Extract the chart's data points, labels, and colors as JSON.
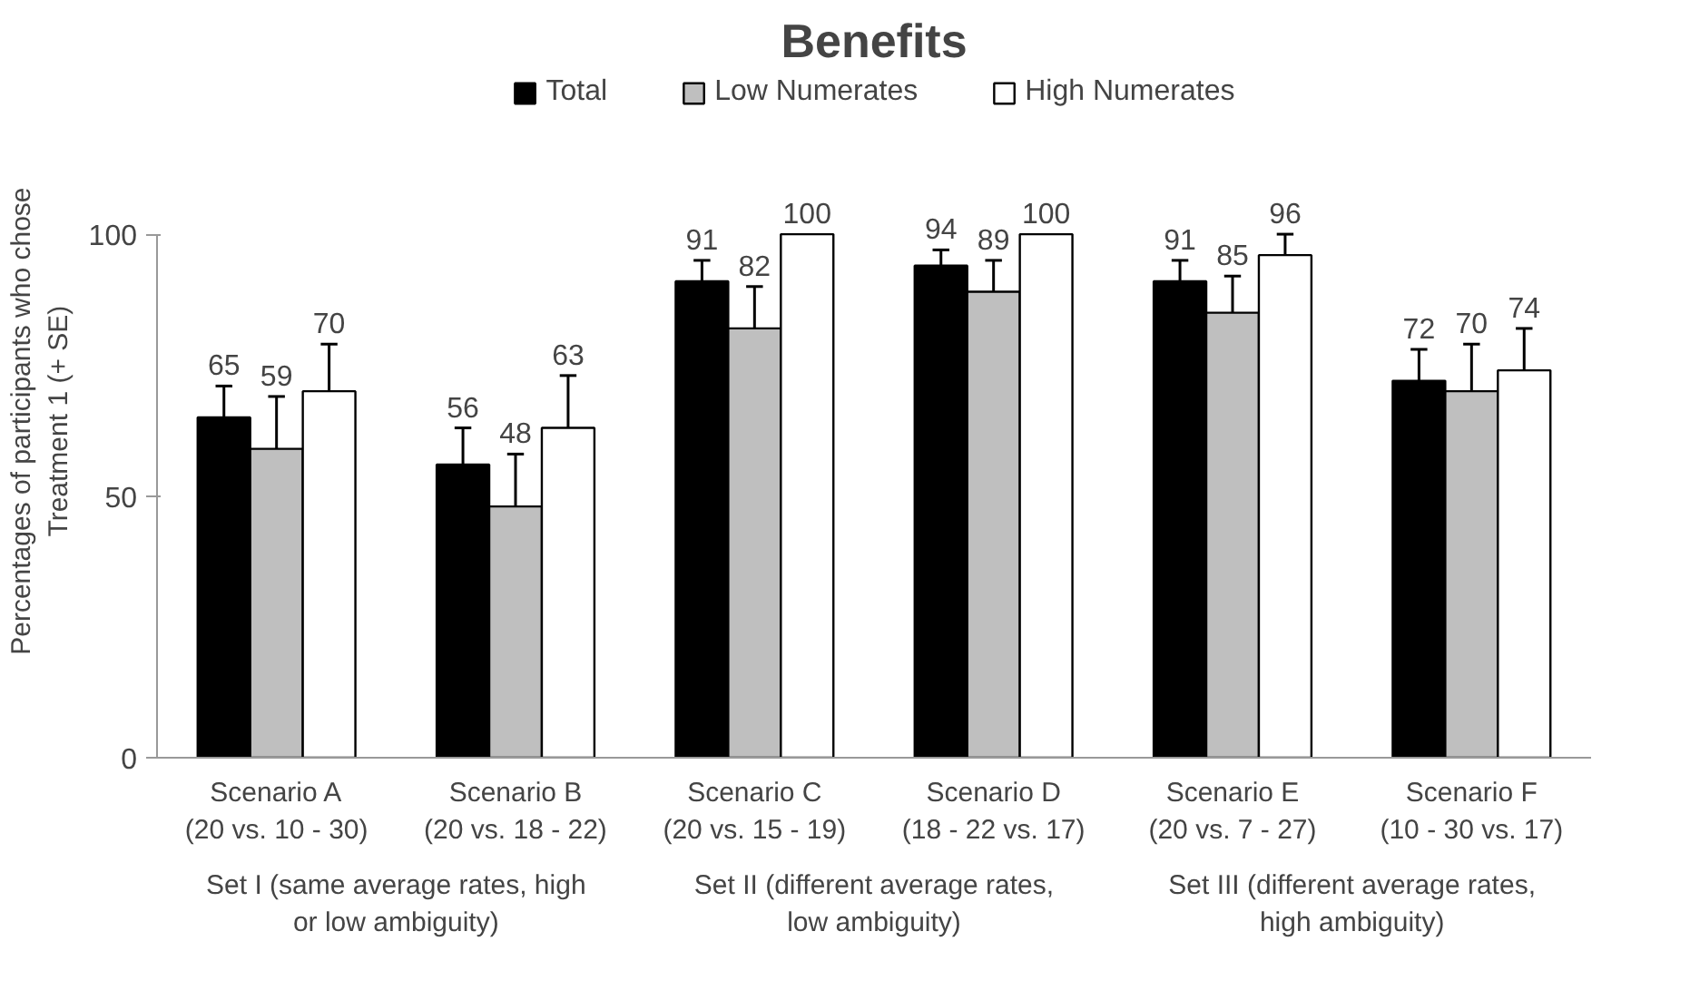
{
  "chart_data": {
    "type": "bar",
    "title": "Benefits",
    "ylabel": "Percentages  of participants who chose\nTreatment 1  (+ SE)",
    "categories": [
      "Scenario A\n(20 vs. 10 - 30)",
      "Scenario B\n(20 vs. 18 - 22)",
      "Scenario C\n(20 vs. 15 - 19)",
      "Scenario D\n(18 - 22 vs. 17)",
      "Scenario E\n(20 vs. 7 - 27)",
      "Scenario F\n(10 - 30 vs. 17)"
    ],
    "series": [
      {
        "name": "Total",
        "color": "#000000",
        "values": [
          65,
          56,
          91,
          94,
          91,
          72
        ],
        "errors": [
          [
            65,
            71
          ],
          [
            56,
            63
          ],
          [
            91,
            95
          ],
          [
            94,
            97
          ],
          [
            91,
            95
          ],
          [
            72,
            78
          ]
        ]
      },
      {
        "name": "Low Numerates",
        "color": "#bfbfbf",
        "values": [
          59,
          48,
          82,
          89,
          85,
          70
        ],
        "errors": [
          [
            59,
            69
          ],
          [
            48,
            58
          ],
          [
            82,
            90
          ],
          [
            89,
            95
          ],
          [
            85,
            92
          ],
          [
            70,
            79
          ]
        ]
      },
      {
        "name": "High Numerates",
        "color": "#ffffff",
        "values": [
          70,
          63,
          100,
          100,
          96,
          74
        ],
        "errors": [
          [
            70,
            79
          ],
          [
            63,
            73
          ],
          null,
          null,
          [
            96,
            100
          ],
          [
            74,
            82
          ]
        ]
      }
    ],
    "annotations": [
      "Set I (same average rates, high\nor low ambiguity)",
      "Set II (different average rates,\nlow ambiguity)",
      "Set III (different average rates,\nhigh ambiguity)"
    ],
    "ylim": [
      0,
      100
    ],
    "yticks": [
      0,
      50,
      100
    ],
    "grid": false,
    "legend": "top",
    "data_labels": true
  }
}
